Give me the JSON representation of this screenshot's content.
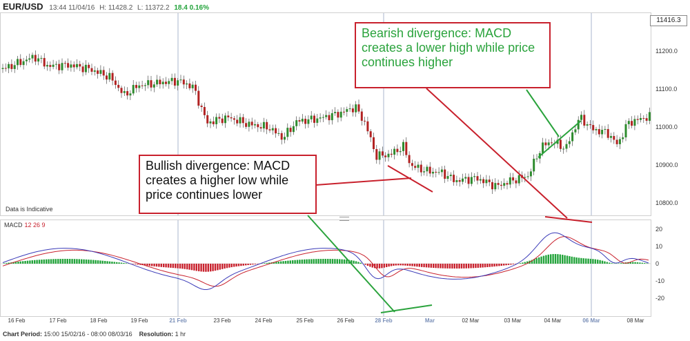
{
  "header": {
    "symbol": "EUR/USD",
    "datetime": "13:44 11/04/16",
    "high": "H: 11428.2",
    "low": "L: 11372.2",
    "change": "18.4 0.16%"
  },
  "last_price": "11416.3",
  "price_axis": [
    "11200.0",
    "11100.0",
    "11000.0",
    "10900.0",
    "10800.0"
  ],
  "macd_axis": [
    "20",
    "10",
    "0",
    "-10",
    "-20"
  ],
  "x_axis": [
    {
      "label": "16 Feb",
      "highlight": false
    },
    {
      "label": "17 Feb",
      "highlight": false
    },
    {
      "label": "18 Feb",
      "highlight": false
    },
    {
      "label": "19 Feb",
      "highlight": false
    },
    {
      "label": "21 Feb",
      "highlight": true
    },
    {
      "label": "23 Feb",
      "highlight": false
    },
    {
      "label": "24 Feb",
      "highlight": false
    },
    {
      "label": "25 Feb",
      "highlight": false
    },
    {
      "label": "26 Feb",
      "highlight": false
    },
    {
      "label": "28 Feb",
      "highlight": true
    },
    {
      "label": "Mar",
      "highlight": true
    },
    {
      "label": "02 Mar",
      "highlight": false
    },
    {
      "label": "03 Mar",
      "highlight": false
    },
    {
      "label": "04 Mar",
      "highlight": false
    },
    {
      "label": "06 Mar",
      "highlight": true
    },
    {
      "label": "08 Mar",
      "highlight": false
    }
  ],
  "annotations": {
    "bearish": "Bearish divergence: MACD creates a lower high while price continues higher",
    "bullish": "Bullish divergence: MACD creates a higher low while price continues lower"
  },
  "data_indicative": "Data is Indicative",
  "macd_label": {
    "name": "MACD",
    "params": "12 26 9"
  },
  "footer": {
    "period_label": "Chart Period:",
    "period_value": "15:00 15/02/16 - 08:00 08/03/16",
    "resolution_label": "Resolution:",
    "resolution_value": "1 hr"
  },
  "colors": {
    "up_candle": "#2e8b2e",
    "down_candle": "#b22222",
    "macd_line": "#3a3ab8",
    "signal_line": "#c8202c",
    "hist_pos": "#22a33a",
    "hist_neg": "#c8202c",
    "annotation_green": "#2aa33c",
    "annotation_red": "#c8202c"
  }
}
